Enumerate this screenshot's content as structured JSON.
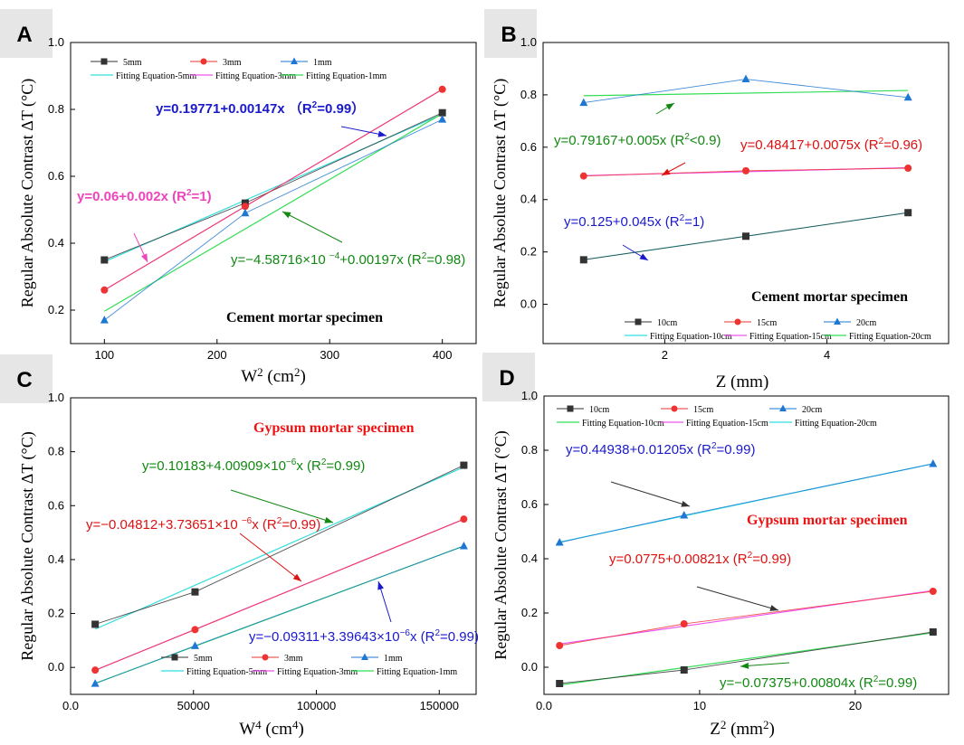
{
  "chart_data": [
    {
      "panel": "A",
      "type": "scatter",
      "xlabel": "W",
      "xlabel_sup": "2",
      "xlabel_unit": " (cm",
      "xlabel_unit_sup": "2",
      "xlabel_end": ")",
      "ylabel": "Regular Absolute Contrast ΔT (°C)",
      "xlim": [
        70,
        430
      ],
      "ylim": [
        0.1,
        1.0
      ],
      "xticks": [
        100,
        200,
        300,
        400
      ],
      "yticks": [
        0.2,
        0.4,
        0.6,
        0.8,
        1.0
      ],
      "specimen": "Cement mortar specimen",
      "specimen_color": "#000000",
      "series": [
        {
          "name": "5mm",
          "marker": "square",
          "color": "#333333",
          "x": [
            100,
            225,
            400
          ],
          "y": [
            0.35,
            0.52,
            0.79
          ]
        },
        {
          "name": "3mm",
          "marker": "circle",
          "color": "#ee3333",
          "x": [
            100,
            225,
            400
          ],
          "y": [
            0.26,
            0.51,
            0.86
          ]
        },
        {
          "name": "1mm",
          "marker": "triangle",
          "color": "#1f77d4",
          "x": [
            100,
            225,
            400
          ],
          "y": [
            0.17,
            0.49,
            0.77
          ]
        }
      ],
      "fits": [
        {
          "name": "Fitting Equation-5mm",
          "color": "#33dddd",
          "intercept": 0.19771,
          "slope": 0.00147
        },
        {
          "name": "Fitting Equation-3mm",
          "color": "#ee55ee",
          "intercept": 0.06,
          "slope": 0.002
        },
        {
          "name": "Fitting Equation-1mm",
          "color": "#33dd55",
          "intercept": -0.000458716,
          "slope": 0.00197
        }
      ],
      "annotations": [
        {
          "main": "y=0.19771+0.00147x  （R",
          "sup": "2",
          "end": "=0.99）",
          "color": "#1a1acc",
          "bold": true
        },
        {
          "main": "y=0.06+0.002x (R",
          "sup": "2",
          "end": "=1)",
          "color": "#ee44bb",
          "bold": true
        },
        {
          "main": "y=−4.58716×10 ",
          "sup": "−4",
          "mid": "+0.00197x (R",
          "sup2": "2",
          "end": "=0.98)",
          "color": "#118811",
          "bold": false
        }
      ]
    },
    {
      "panel": "B",
      "type": "scatter",
      "xlabel": "Z (mm)",
      "ylabel": "Regular Absolute Contrast ΔT (°C)",
      "xlim": [
        0.5,
        5.5
      ],
      "ylim": [
        -0.15,
        1.0
      ],
      "xticks": [
        2,
        4
      ],
      "yticks": [
        0.0,
        0.2,
        0.4,
        0.6,
        0.8,
        1.0
      ],
      "specimen": "Cement mortar specimen",
      "specimen_color": "#000000",
      "series": [
        {
          "name": "10cm",
          "marker": "square",
          "color": "#333333",
          "x": [
            1,
            3,
            5
          ],
          "y": [
            0.17,
            0.26,
            0.35
          ]
        },
        {
          "name": "15cm",
          "marker": "circle",
          "color": "#ee3333",
          "x": [
            1,
            3,
            5
          ],
          "y": [
            0.49,
            0.51,
            0.52
          ]
        },
        {
          "name": "20cm",
          "marker": "triangle",
          "color": "#1f77d4",
          "x": [
            1,
            3,
            5
          ],
          "y": [
            0.77,
            0.86,
            0.79
          ]
        }
      ],
      "fits": [
        {
          "name": "Fitting Equation-10cm",
          "color": "#33dddd",
          "intercept": 0.125,
          "slope": 0.045
        },
        {
          "name": "Fitting Equation-15cm",
          "color": "#ee55ee",
          "intercept": 0.48417,
          "slope": 0.0075
        },
        {
          "name": "Fitting Equation-20cm",
          "color": "#33dd55",
          "intercept": 0.79167,
          "slope": 0.005
        }
      ],
      "annotations": [
        {
          "main": "y=0.79167+0.005x (R",
          "sup": "2",
          "end": "<0.9)",
          "color": "#118811"
        },
        {
          "main": "y=0.48417+0.0075x (R",
          "sup": "2",
          "end": "=0.96)",
          "color": "#dd1111"
        },
        {
          "main": "y=0.125+0.045x (R",
          "sup": "2",
          "end": "=1)",
          "color": "#1a1acc"
        }
      ]
    },
    {
      "panel": "C",
      "type": "scatter",
      "xlabel": "W",
      "xlabel_sup": "4",
      "xlabel_unit": " (cm",
      "xlabel_unit_sup": "4",
      "xlabel_end": ")",
      "ylabel": "Regular Absolute Contrast ΔT (°C)",
      "xlim": [
        0,
        165000
      ],
      "ylim": [
        -0.1,
        1.0
      ],
      "xticks": [
        0,
        50000,
        100000,
        150000
      ],
      "yticks": [
        0.0,
        0.2,
        0.4,
        0.6,
        0.8,
        1.0
      ],
      "specimen": "Gypsum mortar specimen",
      "specimen_color": "#ee1111",
      "series": [
        {
          "name": "5mm",
          "marker": "square",
          "color": "#333333",
          "x": [
            10000,
            50625,
            160000
          ],
          "y": [
            0.16,
            0.28,
            0.75
          ]
        },
        {
          "name": "3mm",
          "marker": "circle",
          "color": "#ee3333",
          "x": [
            10000,
            50625,
            160000
          ],
          "y": [
            -0.01,
            0.14,
            0.55
          ]
        },
        {
          "name": "1mm",
          "marker": "triangle",
          "color": "#1f77d4",
          "x": [
            10000,
            50625,
            160000
          ],
          "y": [
            -0.06,
            0.08,
            0.45
          ]
        }
      ],
      "fits": [
        {
          "name": "Fitting Equation-5mm",
          "color": "#33dddd",
          "intercept": 0.10183,
          "slope": 4.00909e-06
        },
        {
          "name": "Fitting Equation-3mm",
          "color": "#ee55ee",
          "intercept": -0.04812,
          "slope": 3.73651e-06
        },
        {
          "name": "Fitting Equation-1mm",
          "color": "#33dd55",
          "intercept": -0.09311,
          "slope": 3.39643e-06
        }
      ],
      "annotations": [
        {
          "main": "y=0.10183+4.00909×10",
          "sup": "−6",
          "mid": "x (R",
          "sup2": "2",
          "end": "=0.99)",
          "color": "#118811"
        },
        {
          "main": "y=−0.04812+3.73651×10 ",
          "sup": "−6",
          "mid": "x (R",
          "sup2": "2",
          "end": "=0.99)",
          "color": "#dd1111"
        },
        {
          "main": "y=−0.09311+3.39643×10",
          "sup": "−6",
          "mid": "x (R",
          "sup2": "2",
          "end": "=0.99)",
          "color": "#1a1acc"
        }
      ]
    },
    {
      "panel": "D",
      "type": "scatter",
      "xlabel": "Z",
      "xlabel_sup": "2",
      "xlabel_unit": " (mm",
      "xlabel_unit_sup": "2",
      "xlabel_end": ")",
      "ylabel": "Regular Absolute Contrast ΔT (°C)",
      "xlim": [
        0,
        26
      ],
      "ylim": [
        -0.1,
        1.0
      ],
      "xticks": [
        0,
        10,
        20
      ],
      "yticks": [
        0.0,
        0.2,
        0.4,
        0.6,
        0.8,
        1.0
      ],
      "specimen": "Gypsum mortar specimen",
      "specimen_color": "#ee1111",
      "series": [
        {
          "name": "10cm",
          "marker": "square",
          "color": "#333333",
          "x": [
            1,
            9,
            25
          ],
          "y": [
            -0.06,
            -0.01,
            0.13
          ]
        },
        {
          "name": "15cm",
          "marker": "circle",
          "color": "#ee3333",
          "x": [
            1,
            9,
            25
          ],
          "y": [
            0.08,
            0.16,
            0.28
          ]
        },
        {
          "name": "20cm",
          "marker": "triangle",
          "color": "#1f77d4",
          "x": [
            1,
            9,
            25
          ],
          "y": [
            0.46,
            0.56,
            0.75
          ]
        }
      ],
      "fits": [
        {
          "name": "Fitting Equation-10cm",
          "color": "#33dd55",
          "intercept": -0.07375,
          "slope": 0.00804
        },
        {
          "name": "Fitting Equation-15cm",
          "color": "#ee55ee",
          "intercept": 0.0775,
          "slope": 0.00821
        },
        {
          "name": "Fitting Equation-20cm",
          "color": "#33dddd",
          "intercept": 0.44938,
          "slope": 0.01205
        }
      ],
      "annotations": [
        {
          "main": "y=0.44938+0.01205x (R",
          "sup": "2",
          "end": "=0.99)",
          "color": "#1a1acc"
        },
        {
          "main": "y=0.0775+0.00821x (R",
          "sup": "2",
          "end": "=0.99)",
          "color": "#dd1111"
        },
        {
          "main": "y=−0.07375+0.00804x (R",
          "sup": "2",
          "end": "=0.99)",
          "color": "#118811"
        }
      ]
    }
  ]
}
